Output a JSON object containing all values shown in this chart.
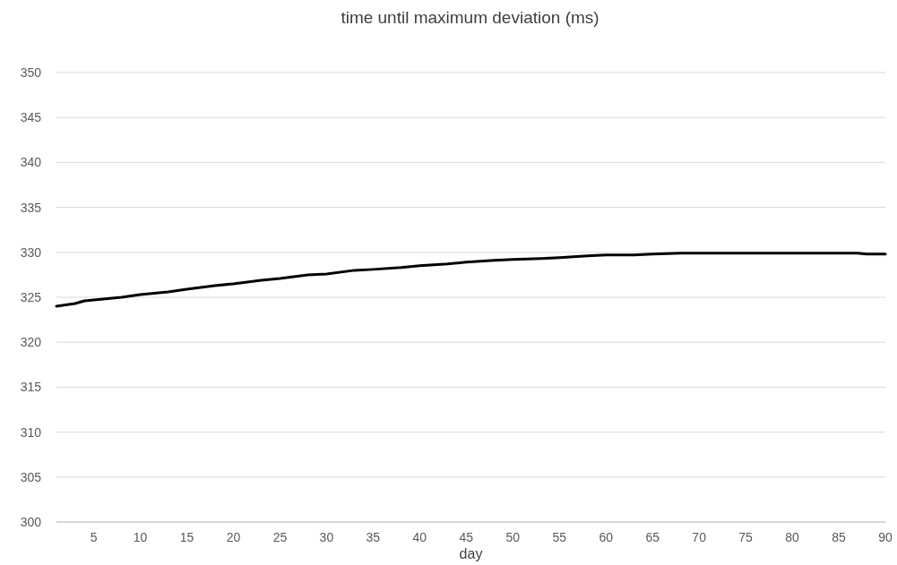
{
  "chart_data": {
    "type": "line",
    "title": "time until maximum deviation (ms)",
    "xlabel": "day",
    "x": [
      1,
      3,
      4,
      5,
      8,
      10,
      13,
      15,
      18,
      20,
      23,
      25,
      28,
      30,
      33,
      35,
      38,
      40,
      43,
      45,
      48,
      50,
      53,
      55,
      58,
      60,
      63,
      65,
      68,
      70,
      75,
      80,
      85,
      87,
      88,
      90
    ],
    "series": [
      {
        "color": "#000000",
        "values": [
          324.0,
          324.3,
          324.6,
          324.7,
          325.0,
          325.3,
          325.6,
          325.9,
          326.3,
          326.5,
          326.9,
          327.1,
          327.5,
          327.6,
          328.0,
          328.1,
          328.3,
          328.5,
          328.7,
          328.9,
          329.1,
          329.2,
          329.3,
          329.4,
          329.6,
          329.7,
          329.7,
          329.8,
          329.9,
          329.9,
          329.9,
          329.9,
          329.9,
          329.9,
          329.8,
          329.8
        ]
      }
    ],
    "xlim": [
      1,
      90
    ],
    "xticks": [
      5,
      10,
      15,
      20,
      25,
      30,
      35,
      40,
      45,
      50,
      55,
      60,
      65,
      70,
      75,
      80,
      85,
      90
    ],
    "ylim": [
      300,
      350
    ],
    "yticks": [
      300,
      305,
      310,
      315,
      320,
      325,
      330,
      335,
      340,
      345,
      350
    ],
    "grid": "y",
    "marker": "none",
    "line_style": "solid"
  }
}
